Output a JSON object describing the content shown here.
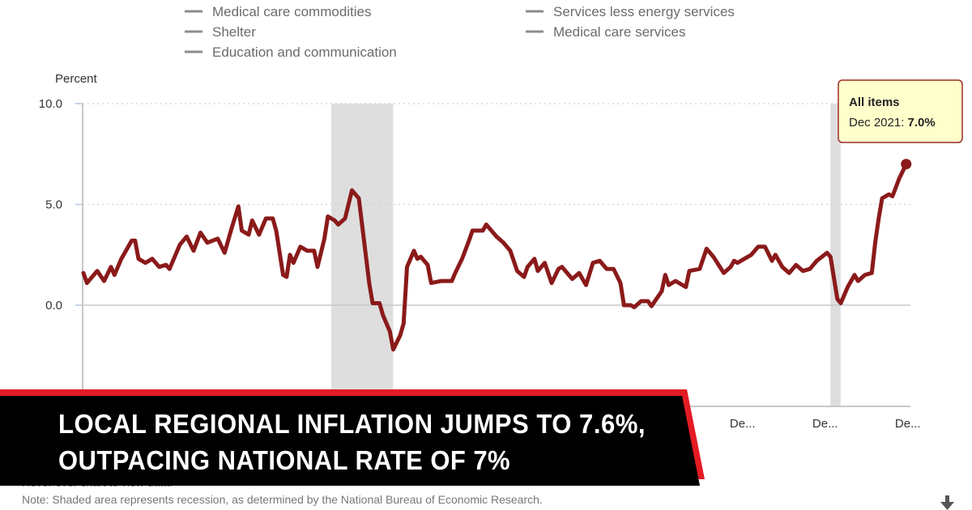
{
  "legend": {
    "items": [
      {
        "label": "Medical care commodities",
        "color": "#8c8c8c"
      },
      {
        "label": "Shelter",
        "color": "#8c8c8c"
      },
      {
        "label": "Education and communication",
        "color": "#8c8c8c"
      },
      {
        "label": "Services less energy services",
        "color": "#8c8c8c"
      },
      {
        "label": "Medical care services",
        "color": "#8c8c8c"
      }
    ]
  },
  "tooltip": {
    "series": "All items",
    "label": "Dec 2021: ",
    "value": "7.0%"
  },
  "banner": {
    "line1": "LOCAL REGIONAL INFLATION JUMPS TO 7.6%,",
    "line2": "OUTPACING NATIONAL RATE OF 7%",
    "bg_color": "#000000",
    "accent_color": "#e31b23"
  },
  "notes": {
    "hover": "Hover over chart to view data.",
    "shaded": "Note: Shaded area represents recession, as determined by the National Bureau of Economic Research."
  },
  "download_icon": "download-arrow-icon",
  "chart_data": {
    "type": "line",
    "ylabel": "Percent",
    "ylim": [
      -5,
      10
    ],
    "yticks": [
      "10.0",
      "5.0",
      "0.0"
    ],
    "ytick_values": [
      10,
      5,
      0
    ],
    "xticks": [
      {
        "date": "2017-12",
        "label": "De..."
      },
      {
        "date": "2019-12",
        "label": "De..."
      },
      {
        "date": "2021-12",
        "label": "De..."
      }
    ],
    "xlim": [
      "2002-01",
      "2021-12"
    ],
    "grid": true,
    "recessions": [
      [
        "2008-01",
        "2009-06"
      ],
      [
        "2020-02",
        "2020-04"
      ]
    ],
    "series": [
      {
        "name": "All items",
        "color": "#8b1a1a",
        "points": [
          [
            "2002-01",
            1.6
          ],
          [
            "2002-02",
            1.1
          ],
          [
            "2002-04",
            1.5
          ],
          [
            "2002-05",
            1.7
          ],
          [
            "2002-07",
            1.2
          ],
          [
            "2002-09",
            1.9
          ],
          [
            "2002-10",
            1.5
          ],
          [
            "2002-12",
            2.3
          ],
          [
            "2003-02",
            2.9
          ],
          [
            "2003-03",
            3.2
          ],
          [
            "2003-04",
            3.2
          ],
          [
            "2003-05",
            2.3
          ],
          [
            "2003-07",
            2.1
          ],
          [
            "2003-09",
            2.3
          ],
          [
            "2003-11",
            1.9
          ],
          [
            "2004-01",
            2.0
          ],
          [
            "2004-02",
            1.8
          ],
          [
            "2004-05",
            3.0
          ],
          [
            "2004-07",
            3.4
          ],
          [
            "2004-09",
            2.7
          ],
          [
            "2004-11",
            3.6
          ],
          [
            "2005-01",
            3.1
          ],
          [
            "2005-04",
            3.3
          ],
          [
            "2005-06",
            2.6
          ],
          [
            "2005-08",
            3.8
          ],
          [
            "2005-10",
            4.9
          ],
          [
            "2005-11",
            3.7
          ],
          [
            "2006-01",
            3.5
          ],
          [
            "2006-02",
            4.2
          ],
          [
            "2006-04",
            3.5
          ],
          [
            "2006-06",
            4.3
          ],
          [
            "2006-08",
            4.3
          ],
          [
            "2006-09",
            3.7
          ],
          [
            "2006-11",
            1.5
          ],
          [
            "2006-12",
            1.4
          ],
          [
            "2007-01",
            2.5
          ],
          [
            "2007-02",
            2.1
          ],
          [
            "2007-04",
            2.9
          ],
          [
            "2007-06",
            2.7
          ],
          [
            "2007-08",
            2.7
          ],
          [
            "2007-09",
            1.9
          ],
          [
            "2007-11",
            3.3
          ],
          [
            "2007-12",
            4.4
          ],
          [
            "2008-02",
            4.2
          ],
          [
            "2008-03",
            4.0
          ],
          [
            "2008-05",
            4.3
          ],
          [
            "2008-07",
            5.7
          ],
          [
            "2008-09",
            5.3
          ],
          [
            "2008-10",
            3.9
          ],
          [
            "2008-12",
            1.1
          ],
          [
            "2009-01",
            0.1
          ],
          [
            "2009-03",
            0.1
          ],
          [
            "2009-04",
            -0.5
          ],
          [
            "2009-06",
            -1.3
          ],
          [
            "2009-07",
            -2.2
          ],
          [
            "2009-09",
            -1.5
          ],
          [
            "2009-10",
            -0.9
          ],
          [
            "2009-11",
            1.9
          ],
          [
            "2010-01",
            2.7
          ],
          [
            "2010-02",
            2.3
          ],
          [
            "2010-03",
            2.4
          ],
          [
            "2010-05",
            2.0
          ],
          [
            "2010-06",
            1.1
          ],
          [
            "2010-09",
            1.2
          ],
          [
            "2010-12",
            1.2
          ],
          [
            "2011-01",
            1.6
          ],
          [
            "2011-03",
            2.3
          ],
          [
            "2011-05",
            3.2
          ],
          [
            "2011-06",
            3.7
          ],
          [
            "2011-09",
            3.7
          ],
          [
            "2011-10",
            4.0
          ],
          [
            "2012-01",
            3.4
          ],
          [
            "2012-03",
            3.1
          ],
          [
            "2012-05",
            2.7
          ],
          [
            "2012-07",
            1.7
          ],
          [
            "2012-09",
            1.4
          ],
          [
            "2012-10",
            1.9
          ],
          [
            "2012-12",
            2.3
          ],
          [
            "2013-01",
            1.7
          ],
          [
            "2013-03",
            2.1
          ],
          [
            "2013-05",
            1.1
          ],
          [
            "2013-07",
            1.8
          ],
          [
            "2013-08",
            1.9
          ],
          [
            "2013-11",
            1.3
          ],
          [
            "2014-01",
            1.6
          ],
          [
            "2014-03",
            1.0
          ],
          [
            "2014-05",
            2.1
          ],
          [
            "2014-07",
            2.2
          ],
          [
            "2014-09",
            1.8
          ],
          [
            "2014-11",
            1.8
          ],
          [
            "2015-01",
            1.1
          ],
          [
            "2015-02",
            0.0
          ],
          [
            "2015-04",
            0.0
          ],
          [
            "2015-05",
            -0.1
          ],
          [
            "2015-07",
            0.2
          ],
          [
            "2015-09",
            0.2
          ],
          [
            "2015-10",
            -0.05
          ],
          [
            "2016-01",
            0.7
          ],
          [
            "2016-02",
            1.5
          ],
          [
            "2016-03",
            1.0
          ],
          [
            "2016-05",
            1.2
          ],
          [
            "2016-06",
            1.1
          ],
          [
            "2016-08",
            0.9
          ],
          [
            "2016-09",
            1.7
          ],
          [
            "2016-12",
            1.8
          ],
          [
            "2017-02",
            2.8
          ],
          [
            "2017-04",
            2.4
          ],
          [
            "2017-07",
            1.6
          ],
          [
            "2017-09",
            1.9
          ],
          [
            "2017-10",
            2.2
          ],
          [
            "2017-11",
            2.1
          ],
          [
            "2018-01",
            2.3
          ],
          [
            "2018-03",
            2.5
          ],
          [
            "2018-05",
            2.9
          ],
          [
            "2018-07",
            2.9
          ],
          [
            "2018-09",
            2.2
          ],
          [
            "2018-10",
            2.5
          ],
          [
            "2018-12",
            1.9
          ],
          [
            "2019-02",
            1.6
          ],
          [
            "2019-04",
            2.0
          ],
          [
            "2019-06",
            1.7
          ],
          [
            "2019-08",
            1.8
          ],
          [
            "2019-10",
            2.2
          ],
          [
            "2020-01",
            2.6
          ],
          [
            "2020-02",
            2.4
          ],
          [
            "2020-04",
            0.3
          ],
          [
            "2020-05",
            0.1
          ],
          [
            "2020-07",
            0.9
          ],
          [
            "2020-09",
            1.5
          ],
          [
            "2020-10",
            1.2
          ],
          [
            "2020-12",
            1.5
          ],
          [
            "2021-02",
            1.6
          ],
          [
            "2021-03",
            3.1
          ],
          [
            "2021-04",
            4.3
          ],
          [
            "2021-05",
            5.3
          ],
          [
            "2021-07",
            5.5
          ],
          [
            "2021-08",
            5.4
          ],
          [
            "2021-10",
            6.3
          ],
          [
            "2021-12",
            7.0
          ]
        ]
      }
    ]
  }
}
